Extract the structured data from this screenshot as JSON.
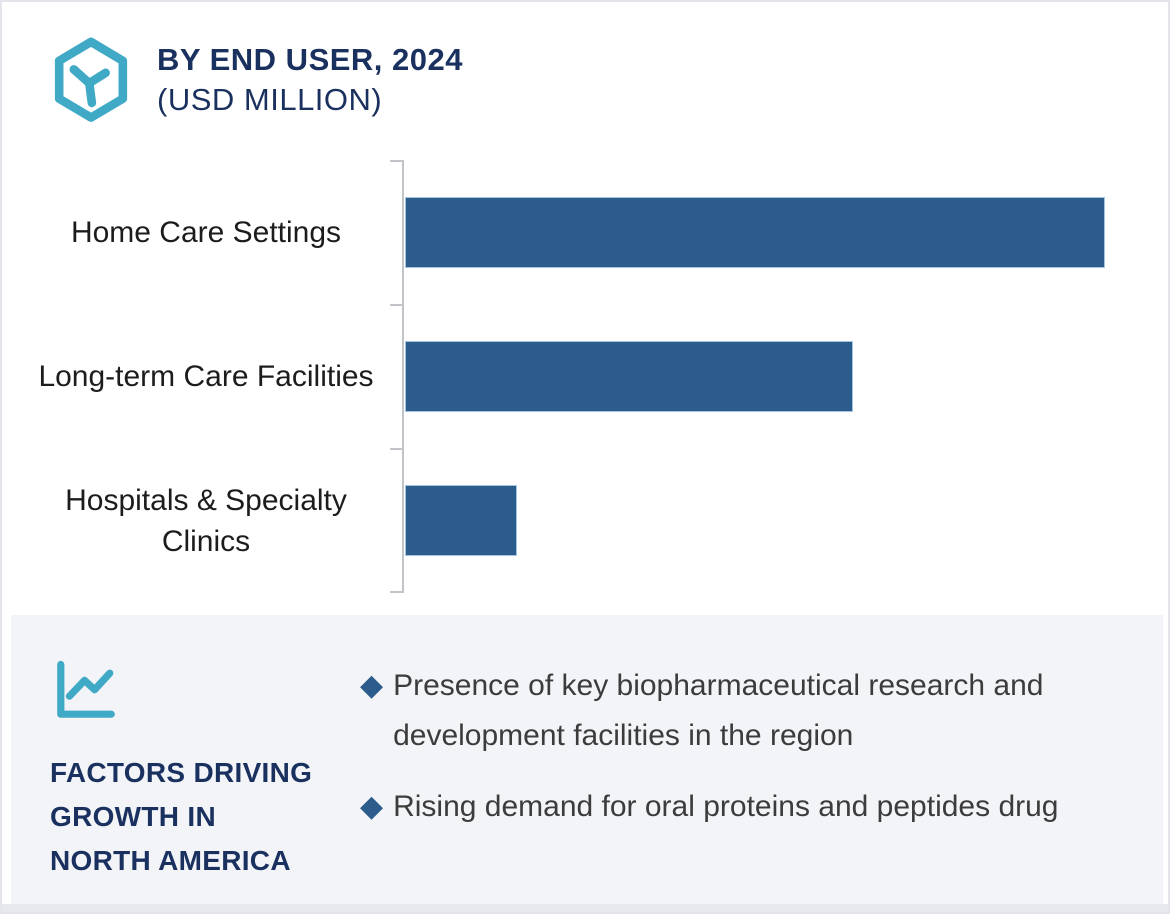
{
  "page": {
    "background": "#ffffff",
    "border_color": "#e4e5eb",
    "accent_teal": "#3fa9c6",
    "navy": "#1a315f"
  },
  "header": {
    "logo_icon": "hexagon-y-logo-icon",
    "title_line1": "BY END USER, 2024",
    "title_line2": "(USD MILLION)",
    "title_color": "#1a315f"
  },
  "chart_data": {
    "type": "bar",
    "orientation": "horizontal",
    "title": "BY END USER, 2024 (USD MILLION)",
    "categories": [
      "Home Care Settings",
      "Long-term Care Facilities",
      "Hospitals & Specialty Clinics"
    ],
    "values_relative_pct": [
      100,
      64,
      16
    ],
    "value_axis_labels_shown": false,
    "data_labels_shown": false,
    "bar_color": "#2b5c8c",
    "bar_border_color": "#a6c4e2",
    "axis_color": "#c3c4c9",
    "grid": false,
    "legend": "none"
  },
  "factors": {
    "panel_bg": "#f2f4f8",
    "icon": "line-chart-icon",
    "heading_lines": [
      "FACTORS DRIVING",
      "GROWTH IN",
      "NORTH AMERICA"
    ],
    "heading_color": "#1a315f",
    "bullet_marker": "◆",
    "bullet_color": "#2b5c8c",
    "bullets": [
      "Presence of key biopharmaceutical research and development facilities in the region",
      "Rising demand for oral proteins and peptides drug"
    ]
  }
}
